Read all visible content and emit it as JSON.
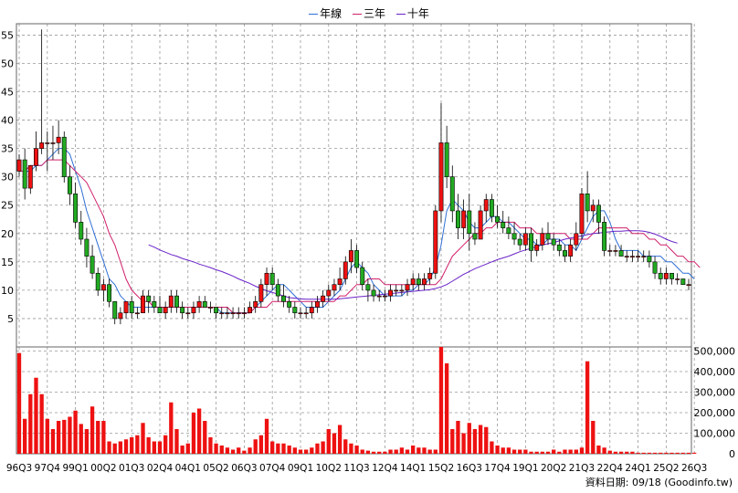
{
  "legend": [
    {
      "name": "年線",
      "color": "#2f6fd6"
    },
    {
      "name": "三年",
      "color": "#d0206a"
    },
    {
      "name": "十年",
      "color": "#6a22c8"
    }
  ],
  "footer": "資料日期: 09/18  (Goodinfo.tw)",
  "colors": {
    "up": "#ee1111",
    "down": "#22aa22",
    "volume": "#ee1111",
    "grid": "#999999"
  },
  "chart_data": {
    "type": "candlestick+line+bar",
    "price_ylim": [
      0,
      57
    ],
    "price_ticks": [
      5,
      10,
      15,
      20,
      25,
      30,
      35,
      40,
      45,
      50,
      55
    ],
    "volume_ylim": [
      0,
      520000
    ],
    "volume_ticks": [
      "0",
      "100,000",
      "200,000",
      "300,000",
      "400,000",
      "500,000"
    ],
    "volume_tick_values": [
      0,
      100000,
      200000,
      300000,
      400000,
      500000
    ],
    "x_ticks": [
      {
        "label": "96Q3",
        "i": 0
      },
      {
        "label": "97Q4",
        "i": 5
      },
      {
        "label": "99Q1",
        "i": 10
      },
      {
        "label": "00Q2",
        "i": 15
      },
      {
        "label": "01Q3",
        "i": 20
      },
      {
        "label": "02Q4",
        "i": 25
      },
      {
        "label": "04Q1",
        "i": 30
      },
      {
        "label": "05Q2",
        "i": 35
      },
      {
        "label": "06Q3",
        "i": 40
      },
      {
        "label": "07Q4",
        "i": 45
      },
      {
        "label": "09Q1",
        "i": 50
      },
      {
        "label": "10Q2",
        "i": 55
      },
      {
        "label": "11Q3",
        "i": 60
      },
      {
        "label": "12Q4",
        "i": 65
      },
      {
        "label": "14Q1",
        "i": 70
      },
      {
        "label": "15Q2",
        "i": 75
      },
      {
        "label": "16Q3",
        "i": 80
      },
      {
        "label": "17Q4",
        "i": 85
      },
      {
        "label": "19Q1",
        "i": 90
      },
      {
        "label": "20Q2",
        "i": 95
      },
      {
        "label": "21Q3",
        "i": 100
      },
      {
        "label": "22Q4",
        "i": 105
      },
      {
        "label": "24Q1",
        "i": 110
      },
      {
        "label": "25Q2",
        "i": 115
      },
      {
        "label": "26Q3",
        "i": 120
      }
    ],
    "candles": [
      [
        31,
        34,
        30,
        33
      ],
      [
        33,
        35,
        26,
        28
      ],
      [
        28,
        32,
        27,
        32
      ],
      [
        32,
        38,
        31,
        35
      ],
      [
        35,
        56,
        34,
        36
      ],
      [
        36,
        38,
        31,
        36
      ],
      [
        36,
        39,
        33,
        36
      ],
      [
        36,
        40,
        34,
        37
      ],
      [
        37,
        38,
        29,
        30
      ],
      [
        30,
        32,
        25,
        27
      ],
      [
        27,
        29,
        21,
        22
      ],
      [
        22,
        24,
        18,
        19
      ],
      [
        19,
        21,
        14,
        16
      ],
      [
        16,
        18,
        12,
        13
      ],
      [
        13,
        14,
        9,
        10
      ],
      [
        10,
        12,
        8,
        11
      ],
      [
        11,
        12,
        7,
        8
      ],
      [
        8,
        8,
        4,
        5
      ],
      [
        5,
        7,
        4,
        6
      ],
      [
        6,
        8,
        5,
        8
      ],
      [
        8,
        9,
        5,
        6
      ],
      [
        6,
        7,
        5,
        6
      ],
      [
        6,
        10,
        6,
        9
      ],
      [
        9,
        10,
        6,
        8
      ],
      [
        8,
        9,
        6,
        7
      ],
      [
        7,
        9,
        6,
        6
      ],
      [
        6,
        8,
        5,
        7
      ],
      [
        7,
        10,
        6,
        9
      ],
      [
        9,
        10,
        6,
        7
      ],
      [
        7,
        8,
        5,
        6
      ],
      [
        6,
        7,
        5,
        6
      ],
      [
        6,
        8,
        5,
        7
      ],
      [
        7,
        9,
        6,
        8
      ],
      [
        8,
        9,
        7,
        7
      ],
      [
        7,
        8,
        6,
        7
      ],
      [
        7,
        7,
        5,
        6
      ],
      [
        6,
        7,
        5,
        6
      ],
      [
        6,
        7,
        5,
        6
      ],
      [
        6,
        7,
        5,
        6
      ],
      [
        6,
        7,
        5,
        6
      ],
      [
        6,
        7,
        5,
        6
      ],
      [
        6,
        8,
        6,
        7
      ],
      [
        7,
        9,
        6,
        8
      ],
      [
        8,
        12,
        7,
        11
      ],
      [
        11,
        14,
        9,
        13
      ],
      [
        13,
        14,
        10,
        11
      ],
      [
        11,
        12,
        8,
        9
      ],
      [
        9,
        11,
        7,
        8
      ],
      [
        8,
        9,
        6,
        7
      ],
      [
        7,
        8,
        5,
        6
      ],
      [
        6,
        7,
        5,
        6
      ],
      [
        6,
        7,
        5,
        6
      ],
      [
        6,
        8,
        5,
        7
      ],
      [
        7,
        9,
        6,
        8
      ],
      [
        8,
        10,
        7,
        9
      ],
      [
        9,
        11,
        8,
        10
      ],
      [
        10,
        12,
        9,
        11
      ],
      [
        11,
        14,
        10,
        12
      ],
      [
        12,
        16,
        11,
        15
      ],
      [
        15,
        19,
        13,
        17
      ],
      [
        17,
        18,
        13,
        14
      ],
      [
        14,
        15,
        10,
        11
      ],
      [
        11,
        12,
        8,
        10
      ],
      [
        10,
        11,
        8,
        9
      ],
      [
        9,
        10,
        8,
        9
      ],
      [
        9,
        10,
        8,
        9
      ],
      [
        9,
        11,
        8,
        10
      ],
      [
        10,
        11,
        9,
        10
      ],
      [
        10,
        11,
        9,
        10
      ],
      [
        10,
        12,
        9,
        11
      ],
      [
        11,
        13,
        10,
        12
      ],
      [
        12,
        13,
        10,
        11
      ],
      [
        11,
        13,
        10,
        12
      ],
      [
        12,
        14,
        11,
        13
      ],
      [
        13,
        25,
        12,
        24
      ],
      [
        24,
        43,
        22,
        36
      ],
      [
        36,
        39,
        28,
        30
      ],
      [
        30,
        32,
        22,
        24
      ],
      [
        24,
        27,
        19,
        21
      ],
      [
        21,
        26,
        19,
        24
      ],
      [
        24,
        27,
        17,
        20
      ],
      [
        20,
        22,
        18,
        19
      ],
      [
        19,
        25,
        19,
        24
      ],
      [
        24,
        27,
        22,
        26
      ],
      [
        26,
        27,
        22,
        23
      ],
      [
        23,
        25,
        21,
        22
      ],
      [
        22,
        24,
        20,
        21
      ],
      [
        21,
        23,
        19,
        20
      ],
      [
        20,
        22,
        18,
        19
      ],
      [
        19,
        20,
        17,
        18
      ],
      [
        18,
        21,
        17,
        20
      ],
      [
        20,
        21,
        15,
        17
      ],
      [
        17,
        19,
        16,
        18
      ],
      [
        18,
        21,
        17,
        20
      ],
      [
        20,
        22,
        18,
        19
      ],
      [
        19,
        20,
        17,
        18
      ],
      [
        18,
        19,
        16,
        17
      ],
      [
        17,
        18,
        15,
        16
      ],
      [
        16,
        19,
        15,
        18
      ],
      [
        18,
        22,
        17,
        20
      ],
      [
        20,
        28,
        19,
        27
      ],
      [
        27,
        31,
        22,
        24
      ],
      [
        24,
        26,
        22,
        25
      ],
      [
        25,
        26,
        20,
        22
      ],
      [
        22,
        23,
        16,
        17
      ],
      [
        17,
        18,
        16,
        17
      ],
      [
        17,
        18,
        16,
        17
      ],
      [
        17,
        18,
        16,
        16
      ],
      [
        16,
        17,
        15,
        16
      ],
      [
        16,
        17,
        15,
        16
      ],
      [
        16,
        17,
        15,
        16
      ],
      [
        16,
        17,
        15,
        16
      ],
      [
        16,
        17,
        14,
        15
      ],
      [
        15,
        16,
        12,
        13
      ],
      [
        13,
        14,
        11,
        12
      ],
      [
        12,
        14,
        11,
        13
      ],
      [
        13,
        13,
        11,
        12
      ],
      [
        12,
        13,
        11,
        12
      ],
      [
        12,
        12,
        11,
        11
      ],
      [
        11,
        12,
        10,
        11
      ]
    ],
    "series": [
      {
        "name": "年線",
        "start": 0,
        "values": [
          31,
          31,
          31,
          32,
          32,
          33,
          34,
          35,
          35,
          34,
          31,
          28,
          24,
          21,
          18,
          15,
          12,
          11,
          9,
          8,
          7,
          7,
          7,
          7,
          7,
          7,
          7,
          7,
          7,
          7,
          7,
          7,
          7,
          7,
          7,
          7,
          6,
          6,
          6,
          6,
          6,
          6,
          7,
          8,
          9,
          10,
          11,
          11,
          10,
          9,
          8,
          7,
          7,
          7,
          7,
          8,
          9,
          10,
          12,
          14,
          15,
          14,
          13,
          11,
          10,
          9,
          9,
          9,
          9,
          10,
          10,
          11,
          11,
          12,
          14,
          18,
          24,
          26,
          25,
          24,
          22,
          21,
          21,
          22,
          23,
          23,
          22,
          22,
          21,
          20,
          19,
          19,
          18,
          18,
          19,
          19,
          19,
          18,
          18,
          17,
          19,
          21,
          23,
          24,
          24,
          22,
          19,
          17,
          17,
          17,
          17,
          16,
          16,
          16,
          16,
          15,
          15,
          14,
          13,
          13,
          12
        ]
      },
      {
        "name": "三年",
        "start": 0,
        "values": [
          31,
          31,
          32,
          32,
          32,
          33,
          33,
          33,
          33,
          32,
          31,
          30,
          29,
          27,
          25,
          23,
          20,
          18,
          15,
          12,
          10,
          9,
          8,
          8,
          7,
          7,
          7,
          7,
          7,
          7,
          7,
          7,
          7,
          7,
          7,
          7,
          7,
          7,
          6,
          6,
          6,
          6,
          7,
          7,
          7,
          8,
          8,
          8,
          8,
          8,
          8,
          8,
          8,
          8,
          8,
          8,
          8,
          9,
          9,
          10,
          11,
          11,
          12,
          12,
          12,
          11,
          11,
          11,
          11,
          11,
          11,
          11,
          11,
          11,
          11,
          12,
          14,
          16,
          17,
          18,
          19,
          20,
          20,
          21,
          21,
          22,
          22,
          22,
          22,
          21,
          21,
          21,
          20,
          20,
          20,
          20,
          20,
          20,
          19,
          19,
          19,
          19,
          20,
          21,
          21,
          21,
          21,
          21,
          21,
          20,
          20,
          20,
          19,
          19,
          18,
          18,
          17,
          16,
          16,
          15,
          15,
          14
        ]
      },
      {
        "name": "十年",
        "start": 23,
        "values": [
          18,
          17.6,
          17.1,
          16.7,
          16.3,
          16,
          15.6,
          15.3,
          15,
          14.6,
          14.3,
          14,
          13.6,
          13.3,
          12.9,
          12.5,
          12,
          11.6,
          11.2,
          10.7,
          10.3,
          9.9,
          9.6,
          9.3,
          9,
          8.7,
          8.6,
          8.5,
          8.4,
          8.4,
          8.4,
          8.4,
          8.4,
          8.4,
          8.5,
          8.6,
          8.7,
          8.8,
          8.9,
          9,
          9.1,
          9.2,
          9.3,
          9.4,
          9.5,
          9.6,
          9.7,
          9.8,
          9.9,
          10,
          10.1,
          10.3,
          10.6,
          11,
          11.6,
          12.2,
          12.8,
          13.3,
          13.8,
          14.2,
          14.6,
          15,
          15.4,
          15.7,
          16,
          16.4,
          16.8,
          17.1,
          17.4,
          17.7,
          18,
          18.2,
          18.4,
          18.7,
          19,
          19.2,
          19.4,
          19.6,
          19.8,
          20,
          20.1,
          20.2,
          20.3,
          20.4,
          20.4,
          20.5,
          20.5,
          20.5,
          20.4,
          20.2,
          19.9,
          19.5,
          19,
          18.6,
          18.3
        ]
      }
    ],
    "volume": [
      490000,
      170000,
      290000,
      370000,
      290000,
      170000,
      120000,
      160000,
      165000,
      180000,
      210000,
      145000,
      120000,
      230000,
      160000,
      160000,
      60000,
      50000,
      60000,
      70000,
      80000,
      90000,
      150000,
      80000,
      60000,
      60000,
      90000,
      250000,
      120000,
      40000,
      50000,
      200000,
      220000,
      160000,
      80000,
      50000,
      40000,
      30000,
      20000,
      30000,
      15000,
      30000,
      70000,
      90000,
      170000,
      60000,
      50000,
      50000,
      40000,
      30000,
      20000,
      20000,
      30000,
      50000,
      60000,
      120000,
      100000,
      140000,
      70000,
      50000,
      40000,
      20000,
      15000,
      10000,
      10000,
      10000,
      20000,
      20000,
      30000,
      20000,
      40000,
      30000,
      30000,
      20000,
      20000,
      520000,
      440000,
      120000,
      160000,
      100000,
      150000,
      120000,
      140000,
      130000,
      60000,
      40000,
      30000,
      30000,
      20000,
      20000,
      20000,
      10000,
      10000,
      10000,
      10000,
      20000,
      10000,
      20000,
      20000,
      20000,
      30000,
      450000,
      160000,
      40000,
      30000,
      15000,
      10000,
      10000,
      10000,
      10000,
      5000,
      5000,
      5000,
      5000,
      5000,
      5000,
      5000,
      5000,
      5000,
      5000,
      5000
    ]
  }
}
